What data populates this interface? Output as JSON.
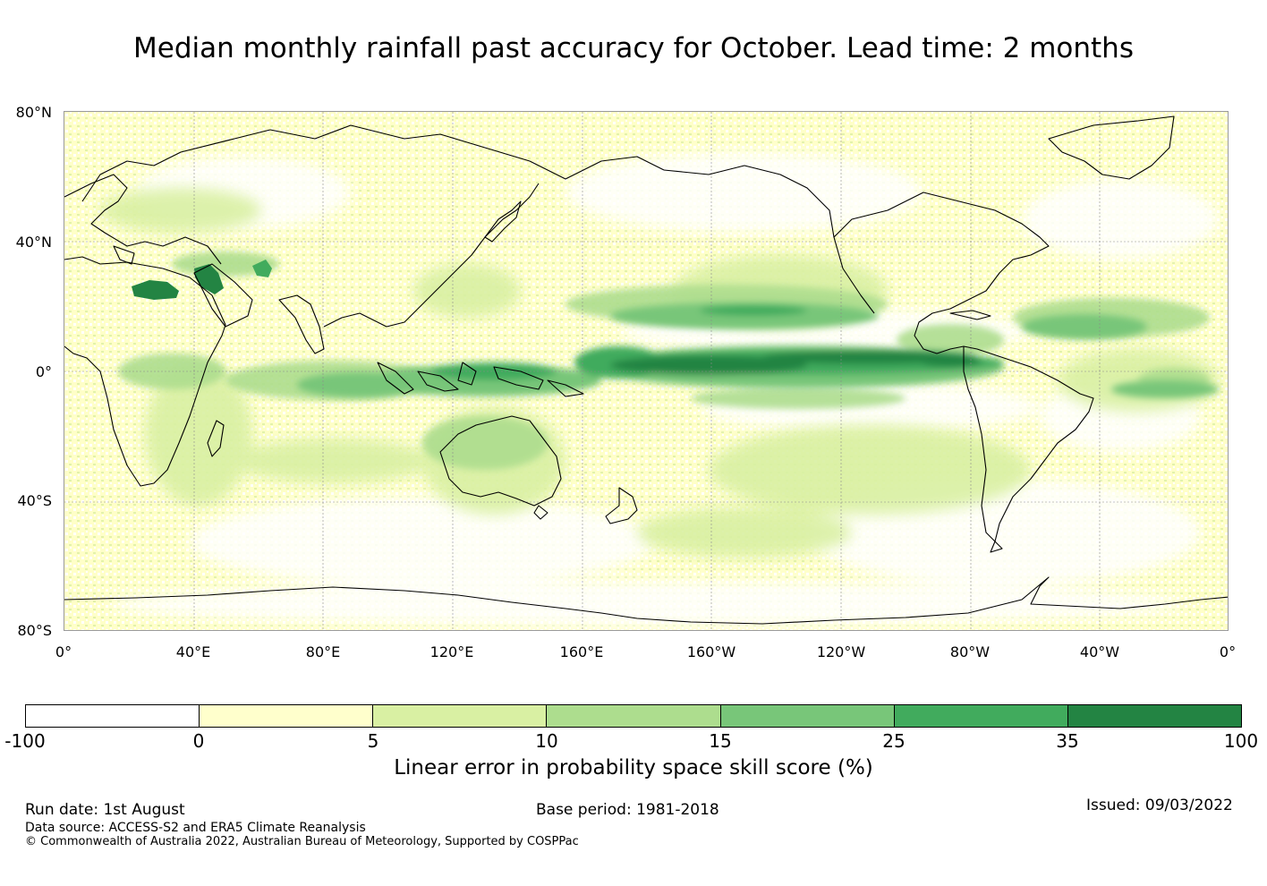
{
  "title": "Median monthly rainfall past accuracy for October. Lead time: 2 months",
  "map": {
    "lat_labels": [
      "80°N",
      "40°N",
      "0°",
      "40°S",
      "80°S"
    ],
    "lon_labels": [
      "0°",
      "40°E",
      "80°E",
      "120°E",
      "160°E",
      "160°W",
      "120°W",
      "80°W",
      "40°W",
      "0°"
    ],
    "land_fill": "#ffffc8",
    "coast_color": "#000000"
  },
  "colorbar": {
    "ticks": [
      "-100",
      "0",
      "5",
      "10",
      "15",
      "25",
      "35",
      "100"
    ],
    "colors": [
      "#ffffff",
      "#ffffcc",
      "#d9f0a3",
      "#addd8e",
      "#78c679",
      "#41ab5d",
      "#238443"
    ],
    "label": "Linear error in probability space skill score (%)"
  },
  "footer": {
    "run_date": "Run date: 1st August",
    "base_period": "Base period: 1981-2018",
    "issued": "Issued: 09/03/2022",
    "data_source": "Data source: ACCESS-S2 and ERA5 Climate Reanalysis",
    "copyright": "© Commonwealth of Australia 2022, Australian Bureau of Meteorology, Supported by COSPPac"
  }
}
